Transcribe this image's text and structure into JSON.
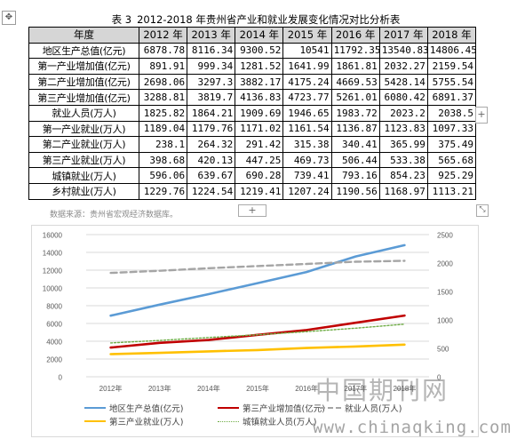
{
  "caption": {
    "number": "表 3",
    "title": "2012-2018 年贵州省产业和就业发展变化情况对比分析表"
  },
  "table": {
    "headers": [
      "年度",
      "2012 年",
      "2013 年",
      "2014 年",
      "2015 年",
      "2016 年",
      "2017 年",
      "2018 年"
    ],
    "rows": [
      {
        "label": "地区生产总值(亿元)",
        "values": [
          "6878.78",
          "8116.34",
          "9300.52",
          "10541",
          "11792.35",
          "13540.83",
          "14806.45"
        ]
      },
      {
        "label": "第一产业增加值(亿元)",
        "values": [
          "891.91",
          "999.34",
          "1281.52",
          "1641.99",
          "1861.81",
          "2032.27",
          "2159.54"
        ]
      },
      {
        "label": "第二产业增加值(亿元)",
        "values": [
          "2698.06",
          "3297.3",
          "3882.17",
          "4175.24",
          "4669.53",
          "5428.14",
          "5755.54"
        ]
      },
      {
        "label": "第三产业增加值(亿元)",
        "values": [
          "3288.81",
          "3819.7",
          "4136.83",
          "4723.77",
          "5261.01",
          "6080.42",
          "6891.37"
        ]
      },
      {
        "label": "就业人员(万人)",
        "values": [
          "1825.82",
          "1864.21",
          "1909.69",
          "1946.65",
          "1983.72",
          "2023.2",
          "2038.5"
        ]
      },
      {
        "label": "第一产业就业(万人)",
        "values": [
          "1189.04",
          "1179.76",
          "1171.02",
          "1161.54",
          "1136.87",
          "1123.83",
          "1097.33"
        ]
      },
      {
        "label": "第二产业就业(万人)",
        "values": [
          "238.1",
          "264.32",
          "291.42",
          "315.38",
          "340.41",
          "365.99",
          "375.49"
        ]
      },
      {
        "label": "第三产业就业(万人)",
        "values": [
          "398.68",
          "420.13",
          "447.25",
          "469.73",
          "506.44",
          "533.38",
          "565.68"
        ]
      },
      {
        "label": "城镇就业(万人)",
        "values": [
          "596.06",
          "639.67",
          "690.28",
          "739.41",
          "793.16",
          "854.23",
          "925.29"
        ]
      },
      {
        "label": "乡村就业(万人)",
        "values": [
          "1229.76",
          "1224.54",
          "1219.41",
          "1207.24",
          "1190.56",
          "1168.97",
          "1113.21"
        ]
      }
    ]
  },
  "source_note": "数据来源：贵州省宏观经济数据库。",
  "ui": {
    "move_handle": "✥",
    "row_plus": "+",
    "table_plus": "+",
    "resize_handle": "⤡"
  },
  "chart_data": {
    "type": "line",
    "x": [
      "2012年",
      "2013年",
      "2014年",
      "2015年",
      "2016年",
      "2017年",
      "2018年"
    ],
    "y_left": {
      "min": 0,
      "max": 16000,
      "ticks": [
        "0",
        "2000",
        "4000",
        "6000",
        "8000",
        "10000",
        "12000",
        "14000",
        "16000"
      ]
    },
    "y_right": {
      "min": 0,
      "max": 2500,
      "ticks": [
        "0",
        "500",
        "1000",
        "1500",
        "2000",
        "2500"
      ]
    },
    "grid": true,
    "legend_position": "bottom",
    "series": [
      {
        "name": "地区生产总值(亿元)",
        "axis": "left",
        "style": "solid",
        "color": "#5b9bd5",
        "values": [
          6878.78,
          8116.34,
          9300.52,
          10541,
          11792.35,
          13540.83,
          14806.45
        ]
      },
      {
        "name": "第三产业增加值(亿元)",
        "axis": "left",
        "style": "solid",
        "color": "#c00000",
        "values": [
          3288.81,
          3819.7,
          4136.83,
          4723.77,
          5261.01,
          6080.42,
          6891.37
        ]
      },
      {
        "name": "就业人员(万人)",
        "axis": "right",
        "style": "dashed",
        "color": "#a5a5a5",
        "values": [
          1825.82,
          1864.21,
          1909.69,
          1946.65,
          1983.72,
          2023.2,
          2038.5
        ]
      },
      {
        "name": "第三产业就业(万人)",
        "axis": "right",
        "style": "solid",
        "color": "#ffc000",
        "values": [
          398.68,
          420.13,
          447.25,
          469.73,
          506.44,
          533.38,
          565.68
        ]
      },
      {
        "name": "城镇就业人员(万人)",
        "axis": "right",
        "style": "dotted",
        "color": "#70ad47",
        "values": [
          596.06,
          639.67,
          690.28,
          739.41,
          793.16,
          854.23,
          925.29
        ]
      }
    ]
  },
  "watermark": {
    "text_cn": "中国期刊网",
    "text_url": "www.chinaqking.com"
  }
}
